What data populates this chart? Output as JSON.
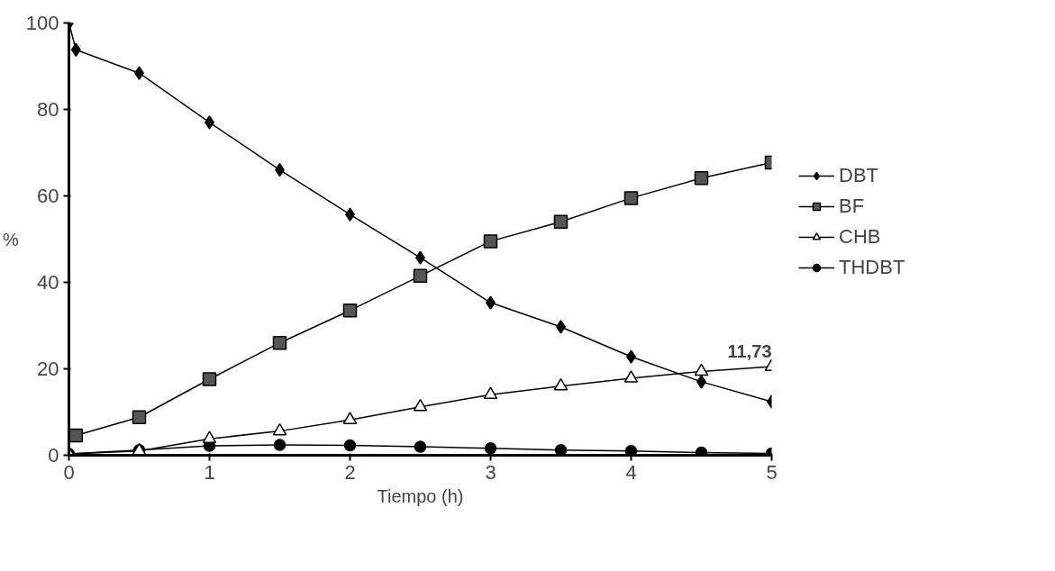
{
  "chart_data": {
    "type": "line",
    "xlabel": "Tiempo (h)",
    "ylabel": "%",
    "xlim": [
      0,
      5
    ],
    "ylim": [
      0,
      100
    ],
    "xticks": [
      0,
      1,
      2,
      3,
      4,
      5
    ],
    "yticks": [
      0,
      20,
      40,
      60,
      80,
      100
    ],
    "grid": false,
    "legend": "right",
    "series": [
      {
        "name": "DBT",
        "color": "#000000",
        "marker": "diamond",
        "x": [
          0,
          0.05,
          0.5,
          1,
          1.5,
          2,
          2.5,
          3,
          3.5,
          4,
          4.5,
          5
        ],
        "values": [
          100,
          93.8,
          88.4,
          77,
          66,
          55.7,
          45.7,
          35.3,
          29.7,
          22.8,
          17,
          12.4
        ]
      },
      {
        "name": "BF",
        "color": "#555555",
        "marker": "square",
        "x": [
          0.05,
          0.5,
          1,
          1.5,
          2,
          2.5,
          3,
          3.5,
          4,
          4.5,
          5
        ],
        "values": [
          4.6,
          8.8,
          17.6,
          26,
          33.5,
          41.5,
          49.5,
          54,
          59.5,
          64.1,
          67.7
        ]
      },
      {
        "name": "CHB",
        "color": "#ffffff",
        "marker": "triangle",
        "x": [
          0,
          0.5,
          1,
          1.5,
          2,
          2.5,
          3,
          3.5,
          4,
          4.5,
          5
        ],
        "values": [
          0.3,
          1,
          3.8,
          5.6,
          8.2,
          11.2,
          14,
          16,
          17.8,
          19.4,
          20.5
        ]
      },
      {
        "name": "THDBT",
        "color": "#000000",
        "marker": "circle",
        "x": [
          0,
          0.5,
          1,
          1.5,
          2,
          2.5,
          3,
          3.5,
          4,
          4.5,
          5
        ],
        "values": [
          0.3,
          1.2,
          2.2,
          2.4,
          2.3,
          2,
          1.6,
          1.2,
          1,
          0.6,
          0.4
        ]
      }
    ],
    "annotations": [
      {
        "text": "11,73",
        "x": 5,
        "y": 20.5
      }
    ]
  }
}
